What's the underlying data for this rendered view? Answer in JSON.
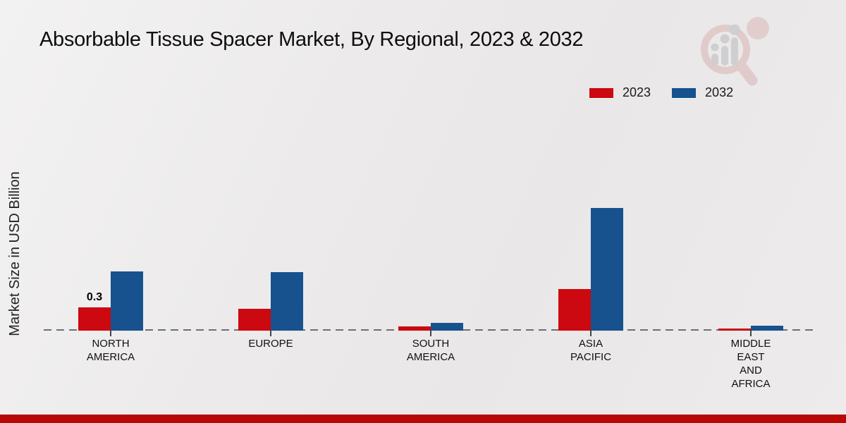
{
  "header": {
    "title": "Absorbable Tissue Spacer Market, By Regional, 2023 & 2032",
    "logo_icon": "magnifier-bar-chart-logo"
  },
  "axis": {
    "ylabel": "Market Size in USD Billion"
  },
  "chart_data": {
    "type": "bar",
    "title": "Absorbable Tissue Spacer Market, By Regional, 2023 & 2032",
    "categories": [
      "NORTH AMERICA",
      "EUROPE",
      "SOUTH AMERICA",
      "ASIA PACIFIC",
      "MIDDLE EAST AND AFRICA"
    ],
    "category_lines": [
      [
        "NORTH",
        "AMERICA"
      ],
      [
        "EUROPE"
      ],
      [
        "SOUTH",
        "AMERICA"
      ],
      [
        "ASIA",
        "PACIFIC"
      ],
      [
        "MIDDLE",
        "EAST",
        "AND",
        "AFRICA"
      ]
    ],
    "series": [
      {
        "name": "2023",
        "color": "#cc0810",
        "values": [
          0.3,
          0.28,
          0.05,
          0.54,
          0.03
        ],
        "value_labels": [
          "0.3",
          null,
          null,
          null,
          null
        ]
      },
      {
        "name": "2032",
        "color": "#17528f",
        "values": [
          0.76,
          0.75,
          0.1,
          1.58,
          0.06
        ],
        "value_labels": [
          null,
          null,
          null,
          null,
          null
        ]
      }
    ],
    "xlabel": "",
    "ylabel": "Market Size in USD Billion",
    "ylim": [
      0,
      1.7
    ],
    "grid": "off",
    "baseline_style": "dashed",
    "legend_position": "top-right"
  },
  "footer": {
    "accent_color": "#b80704"
  },
  "colors": {
    "series_2023": "#cc0810",
    "series_2032": "#17528f",
    "baseline": "#6f6f6f",
    "background": "#ebe9e9"
  }
}
